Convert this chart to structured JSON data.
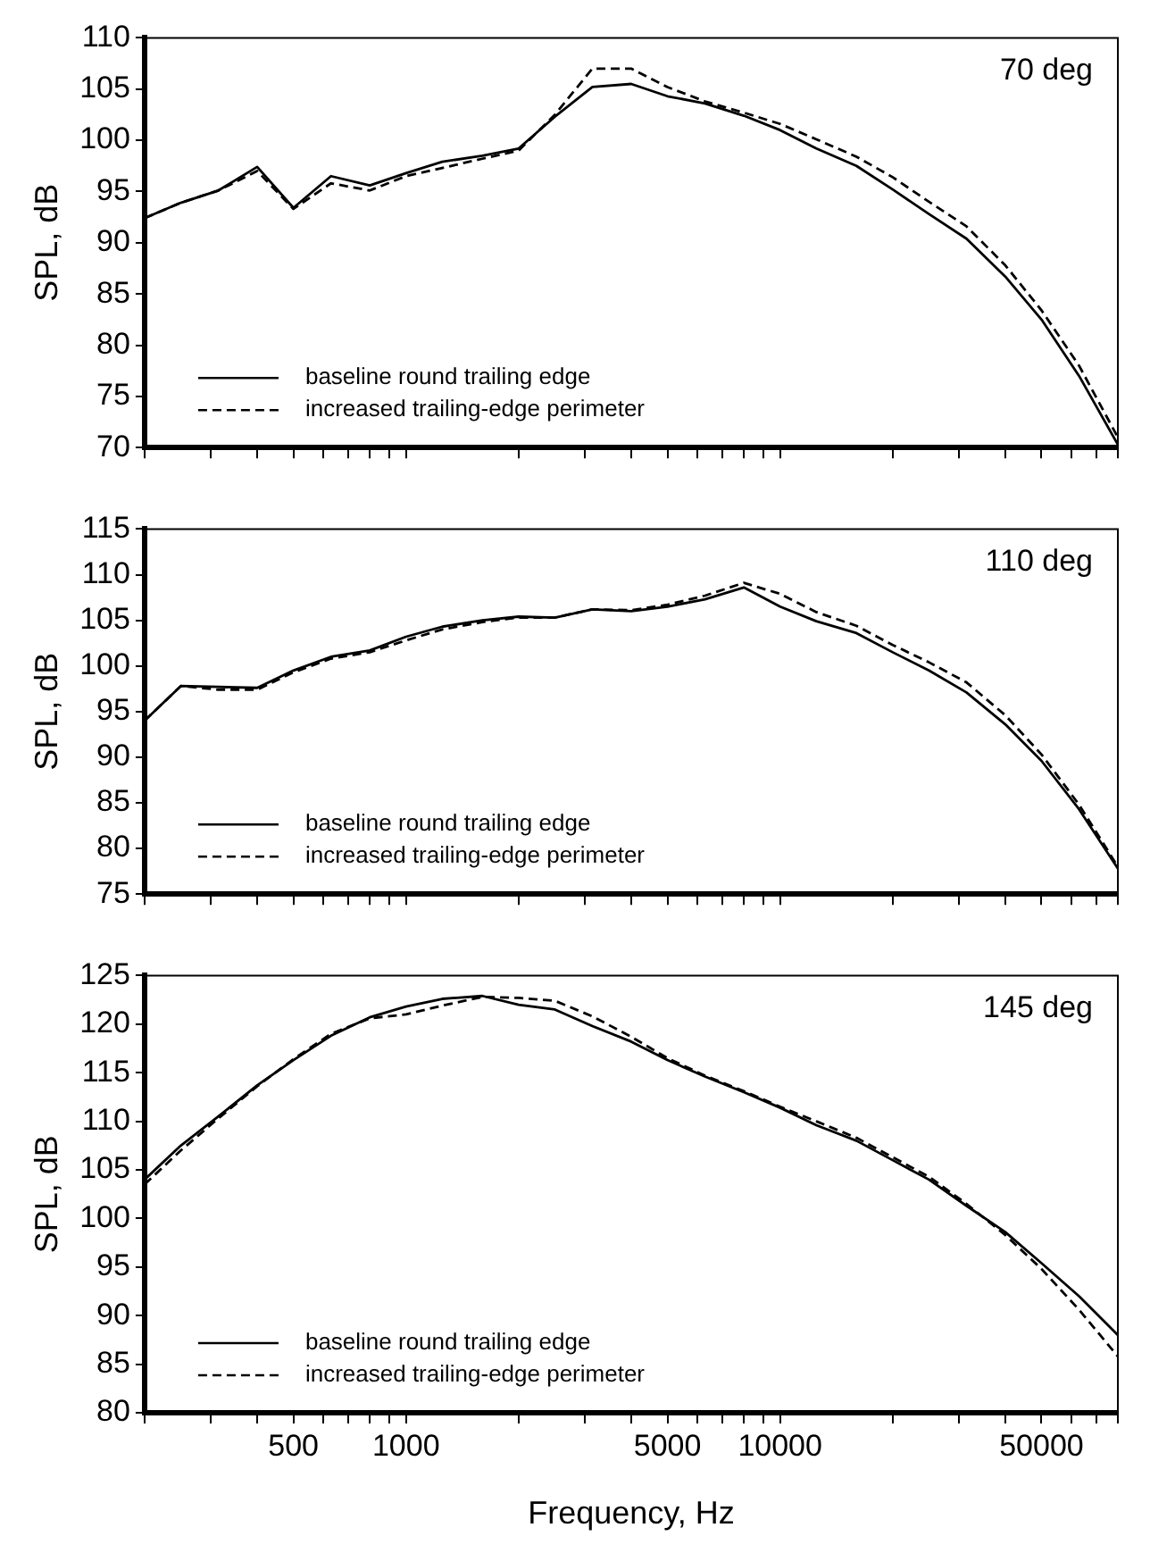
{
  "chart_data": [
    {
      "type": "line",
      "ylabel": "SPL, dB",
      "annotations": [
        "70 deg"
      ],
      "legend": "bottom left",
      "grid": false,
      "tick_labels": "y",
      "log": "x",
      "x": [
        200,
        250,
        315,
        400,
        500,
        630,
        800,
        1000,
        1250,
        1600,
        2000,
        2500,
        3150,
        4000,
        5000,
        6300,
        8000,
        10000,
        12500,
        16000,
        20000,
        25000,
        31500,
        40000,
        50000,
        63000,
        80000
      ],
      "xlim": [
        200,
        80000
      ],
      "xticks": [
        {
          "value": 200,
          "label": null
        },
        {
          "value": 300,
          "label": null
        },
        {
          "value": 400,
          "label": null
        },
        500,
        {
          "value": 600,
          "label": null
        },
        {
          "value": 700,
          "label": null
        },
        {
          "value": 800,
          "label": null
        },
        {
          "value": 900,
          "label": null
        },
        1000,
        {
          "value": 2000,
          "label": null
        },
        {
          "value": 3000,
          "label": null
        },
        {
          "value": 4000,
          "label": null
        },
        5000,
        {
          "value": 6000,
          "label": null
        },
        {
          "value": 7000,
          "label": null
        },
        {
          "value": 8000,
          "label": null
        },
        {
          "value": 9000,
          "label": null
        },
        10000,
        {
          "value": 20000,
          "label": null
        },
        {
          "value": 30000,
          "label": null
        },
        {
          "value": 40000,
          "label": null
        },
        50000,
        {
          "value": 60000,
          "label": null
        },
        {
          "value": 70000,
          "label": null
        },
        {
          "value": 80000,
          "label": null
        }
      ],
      "ylim": [
        70,
        110
      ],
      "yticks": [
        70,
        75,
        80,
        85,
        90,
        95,
        100,
        105,
        110
      ],
      "series": [
        {
          "name": "baseline round trailing edge",
          "color": "#000000",
          "line_style": "solid",
          "values": [
            92.4,
            93.9,
            95.1,
            97.4,
            93.4,
            96.5,
            95.6,
            96.8,
            97.9,
            98.5,
            99.2,
            102.3,
            105.2,
            105.5,
            104.3,
            103.6,
            102.4,
            101.0,
            99.2,
            97.5,
            95.2,
            92.8,
            90.4,
            86.7,
            82.5,
            77.0,
            70.3
          ]
        },
        {
          "name": "increased trailing-edge perimeter",
          "color": "#000000",
          "line_style": "dashed",
          "values": [
            92.4,
            93.9,
            95.1,
            97.0,
            93.3,
            95.8,
            95.1,
            96.5,
            97.3,
            98.2,
            99.0,
            102.5,
            107.0,
            107.0,
            105.2,
            103.8,
            102.7,
            101.6,
            100.1,
            98.4,
            96.4,
            94.0,
            91.6,
            87.8,
            83.4,
            78.0,
            71.0
          ]
        }
      ]
    },
    {
      "type": "line",
      "ylabel": "SPL, dB",
      "annotations": [
        "110 deg"
      ],
      "legend": "bottom left",
      "grid": false,
      "tick_labels": "y",
      "log": "x",
      "x": [
        200,
        250,
        315,
        400,
        500,
        630,
        800,
        1000,
        1250,
        1600,
        2000,
        2500,
        3150,
        4000,
        5000,
        6300,
        8000,
        10000,
        12500,
        16000,
        20000,
        25000,
        31500,
        40000,
        50000,
        63000,
        80000
      ],
      "xlim": [
        200,
        80000
      ],
      "xticks": [
        {
          "value": 200,
          "label": null
        },
        {
          "value": 300,
          "label": null
        },
        {
          "value": 400,
          "label": null
        },
        500,
        {
          "value": 600,
          "label": null
        },
        {
          "value": 700,
          "label": null
        },
        {
          "value": 800,
          "label": null
        },
        {
          "value": 900,
          "label": null
        },
        1000,
        {
          "value": 2000,
          "label": null
        },
        {
          "value": 3000,
          "label": null
        },
        {
          "value": 4000,
          "label": null
        },
        5000,
        {
          "value": 6000,
          "label": null
        },
        {
          "value": 7000,
          "label": null
        },
        {
          "value": 8000,
          "label": null
        },
        {
          "value": 9000,
          "label": null
        },
        10000,
        {
          "value": 20000,
          "label": null
        },
        {
          "value": 30000,
          "label": null
        },
        {
          "value": 40000,
          "label": null
        },
        50000,
        {
          "value": 60000,
          "label": null
        },
        {
          "value": 70000,
          "label": null
        },
        {
          "value": 80000,
          "label": null
        }
      ],
      "ylim": [
        75,
        115
      ],
      "yticks": [
        75,
        80,
        85,
        90,
        95,
        100,
        105,
        110,
        115
      ],
      "series": [
        {
          "name": "baseline round trailing edge",
          "color": "#000000",
          "line_style": "solid",
          "values": [
            94.0,
            97.8,
            97.7,
            97.6,
            99.5,
            101.0,
            101.7,
            103.2,
            104.3,
            105.0,
            105.4,
            105.3,
            106.2,
            106.0,
            106.5,
            107.3,
            108.6,
            106.5,
            104.9,
            103.6,
            101.5,
            99.5,
            97.1,
            93.6,
            89.6,
            84.3,
            77.8
          ]
        },
        {
          "name": "increased trailing-edge perimeter",
          "color": "#000000",
          "line_style": "dashed",
          "values": [
            94.0,
            97.8,
            97.4,
            97.4,
            99.3,
            100.8,
            101.5,
            102.8,
            104.0,
            104.8,
            105.3,
            105.3,
            106.2,
            106.1,
            106.7,
            107.7,
            109.1,
            107.9,
            105.9,
            104.4,
            102.3,
            100.4,
            98.2,
            94.6,
            90.3,
            84.8,
            78.0
          ]
        }
      ]
    },
    {
      "type": "line",
      "xlabel": "Frequency, Hz",
      "ylabel": "SPL, dB",
      "annotations": [
        "145 deg"
      ],
      "legend": "bottom left",
      "grid": false,
      "log": "x",
      "x": [
        200,
        250,
        315,
        400,
        500,
        630,
        800,
        1000,
        1250,
        1600,
        2000,
        2500,
        3150,
        4000,
        5000,
        6300,
        8000,
        10000,
        12500,
        16000,
        20000,
        25000,
        31500,
        40000,
        50000,
        63000,
        80000
      ],
      "xlim": [
        200,
        80000
      ],
      "xticks": [
        {
          "value": 200,
          "label": null
        },
        {
          "value": 300,
          "label": null
        },
        {
          "value": 400,
          "label": null
        },
        500,
        {
          "value": 600,
          "label": null
        },
        {
          "value": 700,
          "label": null
        },
        {
          "value": 800,
          "label": null
        },
        {
          "value": 900,
          "label": null
        },
        1000,
        {
          "value": 2000,
          "label": null
        },
        {
          "value": 3000,
          "label": null
        },
        {
          "value": 4000,
          "label": null
        },
        5000,
        {
          "value": 6000,
          "label": null
        },
        {
          "value": 7000,
          "label": null
        },
        {
          "value": 8000,
          "label": null
        },
        {
          "value": 9000,
          "label": null
        },
        10000,
        {
          "value": 20000,
          "label": null
        },
        {
          "value": 30000,
          "label": null
        },
        {
          "value": 40000,
          "label": null
        },
        50000,
        {
          "value": 60000,
          "label": null
        },
        {
          "value": 70000,
          "label": null
        },
        {
          "value": 80000,
          "label": null
        }
      ],
      "ylim": [
        80,
        125
      ],
      "yticks": [
        80,
        85,
        90,
        95,
        100,
        105,
        110,
        115,
        120,
        125
      ],
      "series": [
        {
          "name": "baseline round trailing edge",
          "color": "#000000",
          "line_style": "solid",
          "values": [
            104.0,
            107.5,
            110.5,
            113.7,
            116.3,
            118.8,
            120.7,
            121.8,
            122.6,
            122.9,
            122.0,
            121.5,
            119.8,
            118.2,
            116.3,
            114.6,
            113.0,
            111.4,
            109.6,
            108.0,
            106.0,
            104.0,
            101.3,
            98.6,
            95.4,
            92.0,
            88.0
          ]
        },
        {
          "name": "increased trailing-edge perimeter",
          "color": "#000000",
          "line_style": "dashed",
          "values": [
            103.5,
            107.0,
            110.3,
            113.6,
            116.4,
            119.0,
            120.6,
            121.0,
            121.9,
            122.8,
            122.7,
            122.4,
            120.8,
            118.7,
            116.5,
            114.7,
            113.1,
            111.5,
            110.0,
            108.3,
            106.3,
            104.3,
            101.5,
            98.3,
            94.8,
            90.6,
            85.8
          ]
        }
      ]
    }
  ]
}
